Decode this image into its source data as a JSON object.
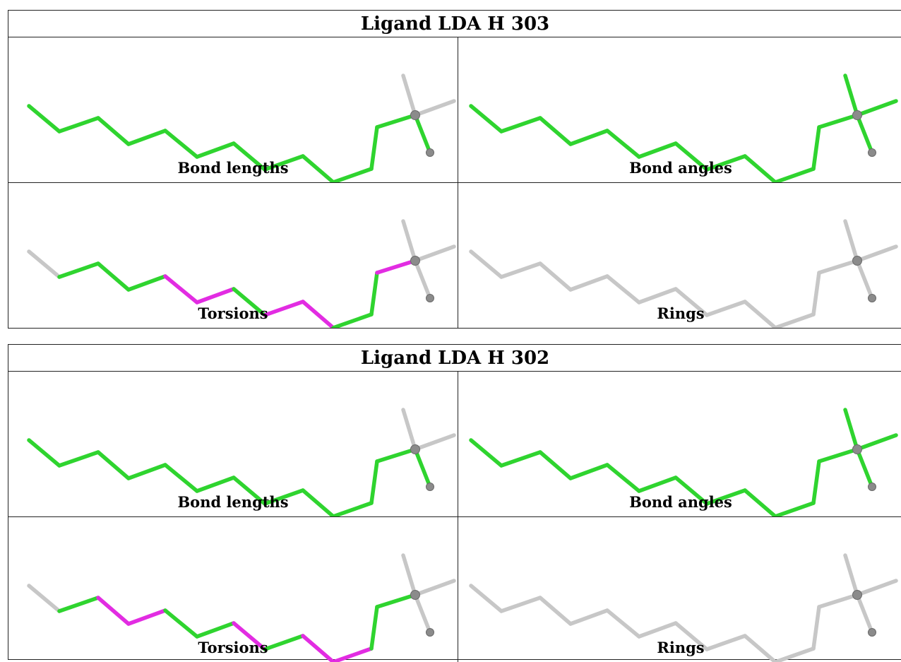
{
  "colors": {
    "ok": "#2fd42f",
    "outlier": "#e22ce2",
    "na": "#c7c7c7",
    "atom": "#8b8b8b"
  },
  "ligands": [
    {
      "title": "Ligand LDA H 303",
      "panels": [
        {
          "label": "Bond lengths",
          "bonds": [
            "green",
            "green",
            "green",
            "green",
            "green",
            "green",
            "green",
            "green",
            "green",
            "green",
            "green",
            "green",
            "gray",
            "gray",
            "gray",
            "green",
            "green",
            "gray"
          ]
        },
        {
          "label": "Bond angles",
          "bonds": [
            "green",
            "green",
            "green",
            "green",
            "green",
            "green",
            "green",
            "green",
            "green",
            "green",
            "green",
            "green",
            "green",
            "green",
            "green",
            "green",
            "green",
            "green"
          ]
        },
        {
          "label": "Torsions",
          "bonds": [
            "gray",
            "green",
            "green",
            "green",
            "magenta",
            "magenta",
            "green",
            "magenta",
            "magenta",
            "green",
            "green",
            "magenta",
            "gray",
            "gray",
            "gray",
            "gray",
            "gray",
            "gray"
          ]
        },
        {
          "label": "Rings",
          "bonds": [
            "gray",
            "gray",
            "gray",
            "gray",
            "gray",
            "gray",
            "gray",
            "gray",
            "gray",
            "gray",
            "gray",
            "gray",
            "gray",
            "gray",
            "gray",
            "gray",
            "gray",
            "gray"
          ]
        }
      ]
    },
    {
      "title": "Ligand LDA H 302",
      "panels": [
        {
          "label": "Bond lengths",
          "bonds": [
            "green",
            "green",
            "green",
            "green",
            "green",
            "green",
            "green",
            "green",
            "green",
            "green",
            "green",
            "green",
            "gray",
            "gray",
            "gray",
            "green",
            "green",
            "gray"
          ]
        },
        {
          "label": "Bond angles",
          "bonds": [
            "green",
            "green",
            "green",
            "green",
            "green",
            "green",
            "green",
            "green",
            "green",
            "green",
            "green",
            "green",
            "green",
            "green",
            "green",
            "green",
            "green",
            "green"
          ]
        },
        {
          "label": "Torsions",
          "bonds": [
            "gray",
            "green",
            "magenta",
            "magenta",
            "green",
            "green",
            "magenta",
            "green",
            "magenta",
            "magenta",
            "green",
            "green",
            "gray",
            "gray",
            "gray",
            "gray",
            "gray",
            "gray"
          ]
        },
        {
          "label": "Rings",
          "bonds": [
            "gray",
            "gray",
            "gray",
            "gray",
            "gray",
            "gray",
            "gray",
            "gray",
            "gray",
            "gray",
            "gray",
            "gray",
            "gray",
            "gray",
            "gray",
            "gray",
            "gray",
            "gray"
          ]
        }
      ]
    }
  ]
}
